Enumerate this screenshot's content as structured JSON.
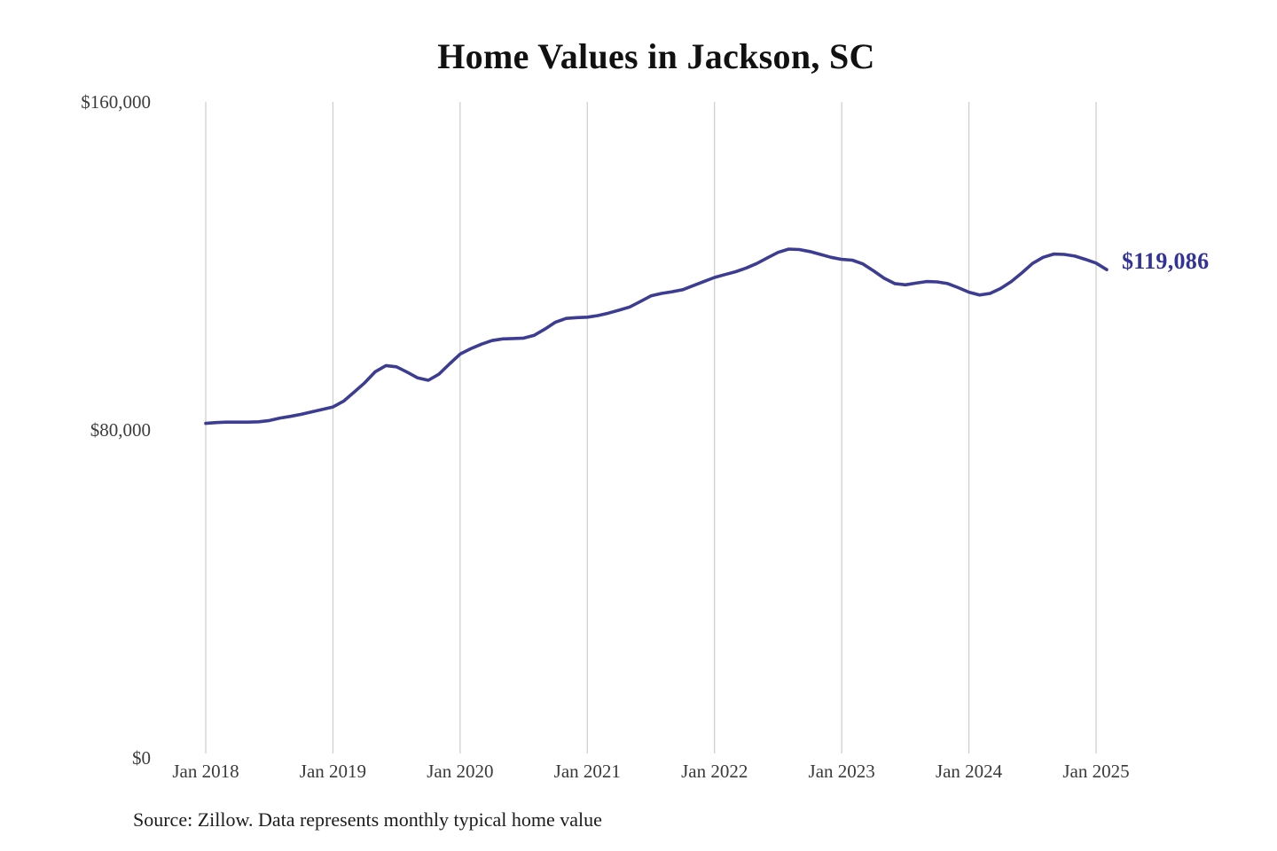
{
  "chart_data": {
    "type": "line",
    "title": "Home Values in Jackson, SC",
    "source": "Source: Zillow. Data represents monthly typical home value",
    "series_name": "Monthly typical home value",
    "end_label": "$119,086",
    "final_value": 119086,
    "frequency": "monthly",
    "start_month": "Jan 2018",
    "end_month": "Feb 2025",
    "x_tick_labels": [
      "Jan 2018",
      "Jan 2019",
      "Jan 2020",
      "Jan 2021",
      "Jan 2022",
      "Jan 2023",
      "Jan 2024",
      "Jan 2025"
    ],
    "y_ticks": [
      {
        "value": 160000,
        "label": "$160,000"
      },
      {
        "value": 80000,
        "label": "$80,000"
      },
      {
        "value": 0,
        "label": "$0"
      }
    ],
    "ylim": [
      0,
      160000
    ],
    "grid": "vertical-only",
    "legend": "none",
    "values": [
      81600,
      81800,
      81900,
      81900,
      81900,
      82000,
      82300,
      82900,
      83300,
      83800,
      84400,
      85000,
      85600,
      87000,
      89200,
      91500,
      94200,
      95700,
      95400,
      94100,
      92700,
      92100,
      93600,
      96100,
      98500,
      99800,
      100900,
      101800,
      102200,
      102300,
      102400,
      103100,
      104600,
      106300,
      107200,
      107400,
      107500,
      107900,
      108500,
      109200,
      110000,
      111300,
      112700,
      113300,
      113700,
      114200,
      115200,
      116200,
      117200,
      117900,
      118600,
      119500,
      120600,
      122000,
      123300,
      124100,
      124000,
      123500,
      122800,
      122100,
      121600,
      121400,
      120500,
      118800,
      117000,
      115700,
      115400,
      115800,
      116200,
      116100,
      115700,
      114700,
      113600,
      112900,
      113300,
      114500,
      116200,
      118300,
      120600,
      122100,
      122900,
      122800,
      122400,
      121600,
      120700,
      119086
    ],
    "colors": {
      "line": "#3c3c92",
      "end_label": "#32329b",
      "gridline": "#cccccc",
      "title": "#111111",
      "axis_label": "#3d3d3d",
      "source": "#1b1b1b",
      "background": "#ffffff"
    }
  }
}
